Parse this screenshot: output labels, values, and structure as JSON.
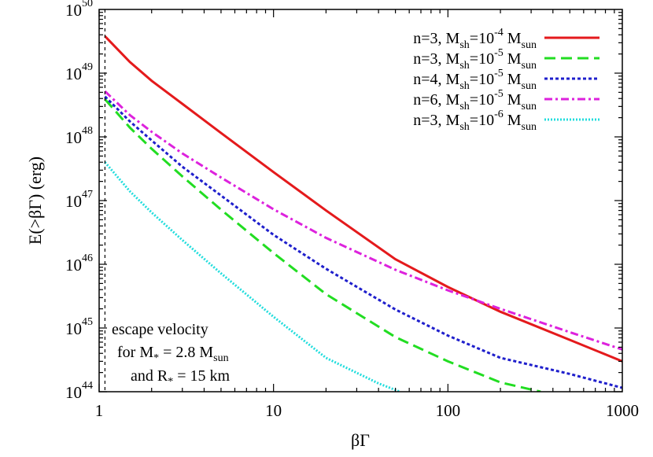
{
  "chart_data": {
    "type": "line",
    "xlabel": "βΓ",
    "ylabel": "E(>βΓ) (erg)",
    "x_scale": "log",
    "y_scale": "log",
    "xlim": [
      1,
      1000
    ],
    "ylim": [
      1e+44,
      1e+50
    ],
    "grid": false,
    "legend_position": "top-right",
    "x_ticks": [
      {
        "value": 1,
        "label": "1"
      },
      {
        "value": 10,
        "label": "10"
      },
      {
        "value": 100,
        "label": "100"
      },
      {
        "value": 1000,
        "label": "1000"
      }
    ],
    "y_ticks": [
      {
        "value": 1e+44,
        "base": "10",
        "exp": "44"
      },
      {
        "value": 1e+45,
        "base": "10",
        "exp": "45"
      },
      {
        "value": 1e+46,
        "base": "10",
        "exp": "46"
      },
      {
        "value": 1e+47,
        "base": "10",
        "exp": "47"
      },
      {
        "value": 1e+48,
        "base": "10",
        "exp": "48"
      },
      {
        "value": 1e+49,
        "base": "10",
        "exp": "49"
      },
      {
        "value": 1e+50,
        "base": "10",
        "exp": "50"
      }
    ],
    "vline": {
      "x": 1.08,
      "style": "dashed",
      "color": "#000000"
    },
    "annotation": {
      "line1": "escape velocity",
      "line2_pre": "for M",
      "line2_sub1": "*",
      "line2_mid": " = 2.8 M",
      "line2_sub2": "sun",
      "line3_pre": "and R",
      "line3_sub": "*",
      "line3_post": " = 15 km"
    },
    "series": [
      {
        "legend": {
          "p1": "n=3, M",
          "s1": "sh",
          "p2": "=10",
          "e": "-4",
          "p3": " M",
          "s2": "sun"
        },
        "color": "#e41a1c",
        "dash": "",
        "width": 3,
        "points": [
          [
            1.08,
            3.8e+49
          ],
          [
            1.5,
            1.5e+49
          ],
          [
            2,
            7.6e+48
          ],
          [
            3,
            3.3e+48
          ],
          [
            5,
            1.15e+48
          ],
          [
            10,
            2.8e+47
          ],
          [
            20,
            7e+46
          ],
          [
            50,
            1.2e+46
          ],
          [
            100,
            4.4e+45
          ],
          [
            200,
            1.8e+45
          ],
          [
            500,
            6.5e+44
          ],
          [
            1000,
            3e+44
          ]
        ]
      },
      {
        "legend": {
          "p1": "n=3, M",
          "s1": "sh",
          "p2": "=10",
          "e": "-5",
          "p3": " M",
          "s2": "sun"
        },
        "color": "#22dd22",
        "dash": "14,7",
        "width": 3,
        "points": [
          [
            1.08,
            3.9e+48
          ],
          [
            1.5,
            1.4e+48
          ],
          [
            2,
            6.5e+47
          ],
          [
            3,
            2.4e+47
          ],
          [
            5,
            7.2e+46
          ],
          [
            10,
            1.5e+46
          ],
          [
            20,
            3.4e+45
          ],
          [
            50,
            7.2e+44
          ],
          [
            100,
            3e+44
          ],
          [
            200,
            1.4e+44
          ],
          [
            340,
            1e+44
          ]
        ]
      },
      {
        "legend": {
          "p1": "n=4, M",
          "s1": "sh",
          "p2": "=10",
          "e": "-5",
          "p3": " M",
          "s2": "sun"
        },
        "color": "#1f1fcc",
        "dash": "4,3",
        "width": 3,
        "points": [
          [
            1.08,
            4.3e+48
          ],
          [
            1.5,
            1.75e+48
          ],
          [
            2,
            8.8e+47
          ],
          [
            3,
            3.4e+47
          ],
          [
            5,
            1.2e+47
          ],
          [
            10,
            2.9e+46
          ],
          [
            20,
            8.5e+45
          ],
          [
            50,
            1.95e+45
          ],
          [
            100,
            7.6e+44
          ],
          [
            200,
            3.4e+44
          ],
          [
            500,
            1.9e+44
          ],
          [
            1000,
            1.15e+44
          ]
        ]
      },
      {
        "legend": {
          "p1": "n=6, M",
          "s1": "sh",
          "p2": "=10",
          "e": "-5",
          "p3": " M",
          "s2": "sun"
        },
        "color": "#dd22dd",
        "dash": "10,4,3,4",
        "width": 3,
        "points": [
          [
            1.08,
            5.2e+48
          ],
          [
            1.5,
            2.2e+48
          ],
          [
            2,
            1.2e+48
          ],
          [
            3,
            5.5e+47
          ],
          [
            5,
            2.3e+47
          ],
          [
            10,
            7.3e+46
          ],
          [
            20,
            2.6e+46
          ],
          [
            50,
            8.2e+45
          ],
          [
            100,
            3.9e+45
          ],
          [
            200,
            2e+45
          ],
          [
            500,
            8.6e+44
          ],
          [
            1000,
            4.6e+44
          ]
        ]
      },
      {
        "legend": {
          "p1": "n=3, M",
          "s1": "sh",
          "p2": "=10",
          "e": "-6",
          "p3": " M",
          "s2": "sun"
        },
        "color": "#22dddd",
        "dash": "2,2",
        "width": 3,
        "points": [
          [
            1.08,
            4e+47
          ],
          [
            1.5,
            1.4e+47
          ],
          [
            2,
            6.5e+46
          ],
          [
            3,
            2.4e+46
          ],
          [
            5,
            7.2e+45
          ],
          [
            10,
            1.5e+45
          ],
          [
            20,
            3.4e+44
          ],
          [
            40,
            1.35e+44
          ],
          [
            53,
            1e+44
          ]
        ]
      }
    ]
  }
}
